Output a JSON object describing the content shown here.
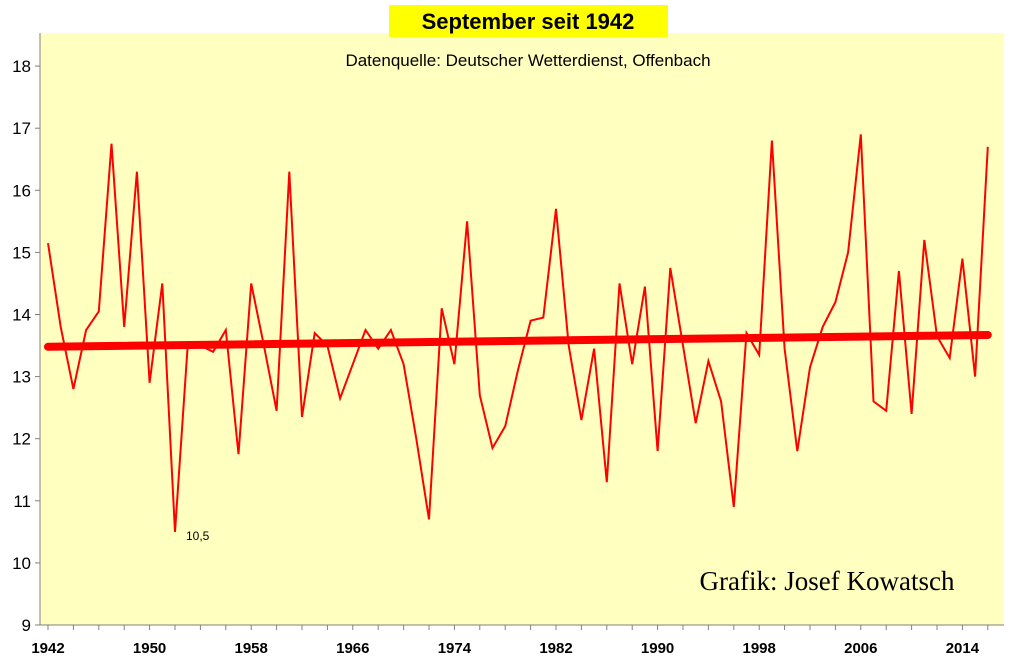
{
  "chart_data": {
    "type": "line",
    "title": "September seit 1942",
    "subtitle": "Datenquelle: Deutscher Wetterdienst, Offenbach",
    "credit": "Grafik: Josef Kowatsch",
    "xlabel": "",
    "ylabel": "",
    "ylim": [
      9,
      18.5
    ],
    "yticks": [
      9,
      10,
      11,
      12,
      13,
      14,
      15,
      16,
      17,
      18
    ],
    "xlim": [
      1942,
      2017
    ],
    "xticks": [
      "1942",
      "1950",
      "1958",
      "1966",
      "1974",
      "1982",
      "1990",
      "1998",
      "2006",
      "2014"
    ],
    "grid": false,
    "plot_background": "#ffffc0",
    "series": [
      {
        "color": "#ff0000",
        "x": [
          1942,
          1943,
          1944,
          1945,
          1946,
          1947,
          1948,
          1949,
          1950,
          1951,
          1952,
          1953,
          1954,
          1955,
          1956,
          1957,
          1958,
          1959,
          1960,
          1961,
          1962,
          1963,
          1964,
          1965,
          1966,
          1967,
          1968,
          1969,
          1970,
          1971,
          1972,
          1973,
          1974,
          1975,
          1976,
          1977,
          1978,
          1979,
          1980,
          1981,
          1982,
          1983,
          1984,
          1985,
          1986,
          1987,
          1988,
          1989,
          1990,
          1991,
          1992,
          1993,
          1994,
          1995,
          1996,
          1997,
          1998,
          1999,
          2000,
          2001,
          2002,
          2003,
          2004,
          2005,
          2006,
          2007,
          2008,
          2009,
          2010,
          2011,
          2012,
          2013,
          2014,
          2015,
          2016
        ],
        "values": [
          15.15,
          13.8,
          12.8,
          13.75,
          14.05,
          16.75,
          13.8,
          16.3,
          12.9,
          14.5,
          10.5,
          13.5,
          13.5,
          13.4,
          13.75,
          11.75,
          14.5,
          13.5,
          12.45,
          16.3,
          12.35,
          13.7,
          13.5,
          12.65,
          13.2,
          13.75,
          13.45,
          13.75,
          13.2,
          12.0,
          10.7,
          14.1,
          13.2,
          15.5,
          12.7,
          11.85,
          12.2,
          13.1,
          13.9,
          13.95,
          15.7,
          13.5,
          12.3,
          13.45,
          11.3,
          14.5,
          13.2,
          14.45,
          11.8,
          14.75,
          13.5,
          12.25,
          13.25,
          12.6,
          10.9,
          13.7,
          13.35,
          16.8,
          13.45,
          11.8,
          13.15,
          13.8,
          14.2,
          15.0,
          16.9,
          12.6,
          12.45,
          14.7,
          12.4,
          15.2,
          13.65,
          13.3,
          14.9,
          13.0,
          16.7
        ]
      },
      {
        "color": "#ff0000",
        "x": [
          1942,
          2016
        ],
        "values": [
          13.48,
          13.67
        ]
      }
    ],
    "annotations": [
      {
        "text": "10,5",
        "x": 1952,
        "y": 10.5
      }
    ]
  }
}
